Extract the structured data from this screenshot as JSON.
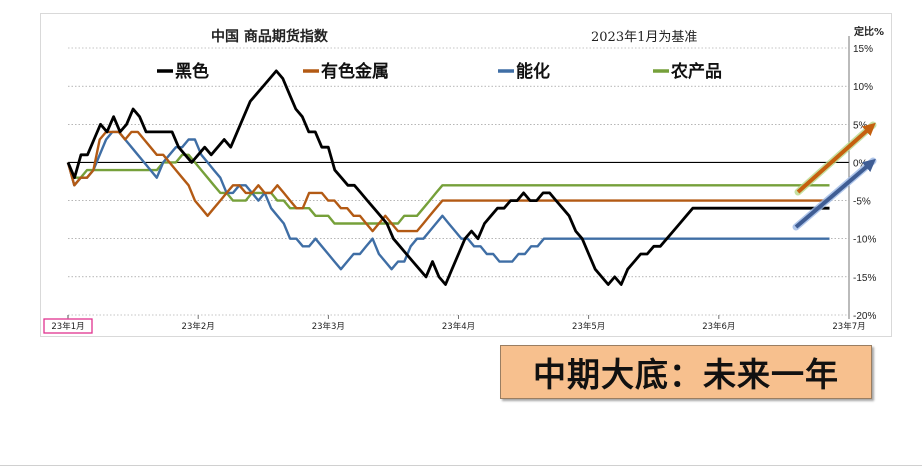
{
  "chart_data": {
    "type": "line",
    "title": "中国 商品期货指数",
    "subtitle": "2023年1月为基准",
    "y_unit_label": "定比%",
    "ylim": [
      -20,
      15
    ],
    "y_ticks": [
      15,
      10,
      5,
      0,
      -5,
      -10,
      -15,
      -20
    ],
    "y_tick_labels": [
      "15%",
      "10%",
      "5%",
      "0%",
      "-5%",
      "-10%",
      "-15%",
      "-20%"
    ],
    "x_ticks": [
      "23年1月",
      "23年2月",
      "23年3月",
      "23年4月",
      "23年5月",
      "23年6月",
      "23年7月"
    ],
    "highlighted_x_tick": "23年1月",
    "legend_position": "top",
    "grid": true,
    "series": [
      {
        "name": "黑色",
        "color": "#000000",
        "x": [
          0,
          0.05,
          0.1,
          0.15,
          0.2,
          0.25,
          0.3,
          0.35,
          0.4,
          0.45,
          0.5,
          0.55,
          0.6,
          0.65,
          0.7,
          0.75,
          0.8,
          0.85,
          0.9,
          0.95,
          1.0,
          1.05,
          1.1,
          1.15,
          1.2,
          1.25,
          1.3,
          1.35,
          1.4,
          1.45,
          1.5,
          1.55,
          1.6,
          1.65,
          1.7,
          1.75,
          1.8,
          1.85,
          1.9,
          1.95,
          2.0,
          2.05,
          2.1,
          2.15,
          2.2,
          2.25,
          2.3,
          2.35,
          2.4,
          2.45,
          2.5,
          2.55,
          2.6,
          2.65,
          2.7,
          2.75,
          2.8,
          2.85,
          2.9,
          2.95,
          3.0,
          3.05,
          3.1,
          3.15,
          3.2,
          3.25,
          3.3,
          3.35,
          3.4,
          3.45,
          3.5,
          3.55,
          3.6,
          3.65,
          3.7,
          3.75,
          3.8,
          3.85,
          3.9,
          3.95,
          4.0,
          4.05,
          4.1,
          4.15,
          4.2,
          4.25,
          4.3,
          4.35,
          4.4,
          4.45,
          4.5,
          4.55,
          4.6,
          4.65,
          4.7,
          4.75,
          4.8,
          4.85,
          4.9,
          4.95,
          5.0,
          5.05,
          5.1,
          5.15,
          5.2,
          5.25,
          5.3,
          5.35,
          5.4,
          5.45,
          5.5,
          5.55,
          5.6,
          5.65,
          5.7,
          5.75,
          5.8,
          5.85,
          5.9,
          5.95,
          6.0
        ],
        "values": [
          0,
          -2,
          1,
          1,
          3,
          5,
          4,
          6,
          4,
          5,
          7,
          6,
          4,
          4,
          4,
          4,
          4,
          2,
          1,
          0,
          1,
          2,
          1,
          2,
          3,
          2,
          4,
          6,
          8,
          9,
          10,
          11,
          12,
          11,
          9,
          7,
          6,
          4,
          4,
          2,
          2,
          -1,
          -2,
          -3,
          -3,
          -4,
          -5,
          -6,
          -7,
          -8,
          -10,
          -11,
          -12,
          -13,
          -14,
          -15,
          -13,
          -15,
          -16,
          -14,
          -12,
          -10,
          -9,
          -10,
          -8,
          -7,
          -6,
          -6,
          -5,
          -5,
          -4,
          -5,
          -5,
          -4,
          -4,
          -5,
          -6,
          -7,
          -9,
          -10,
          -12,
          -14,
          -15,
          -16,
          -15,
          -16,
          -14,
          -13,
          -12,
          -12,
          -11,
          -11,
          -10,
          -9,
          -8,
          -7,
          -6,
          -6,
          -6,
          -6,
          -6,
          -6,
          -6,
          -6,
          -6,
          -6,
          -6,
          -6,
          -6,
          -6,
          -6,
          -6,
          -6,
          -6,
          -6,
          -6,
          -6,
          -6,
          -6,
          -6,
          -6
        ]
      },
      {
        "name": "有色金属",
        "color": "#b35a14",
        "values": [
          0,
          -3,
          -2,
          -2,
          -1,
          3,
          4,
          4,
          4,
          3,
          4,
          4,
          3,
          2,
          1,
          1,
          0,
          -1,
          -2,
          -3,
          -5,
          -6,
          -7,
          -6,
          -5,
          -4,
          -3,
          -3,
          -4,
          -4,
          -3,
          -4,
          -4,
          -3,
          -4,
          -5,
          -6,
          -6,
          -4,
          -4,
          -4,
          -5,
          -5,
          -6,
          -6,
          -7,
          -7,
          -8,
          -9,
          -8,
          -7,
          -8,
          -9,
          -9,
          -9,
          -9,
          -8,
          -7,
          -6,
          -5,
          -5,
          -5,
          -5,
          -5,
          -5,
          -5,
          -5,
          -5,
          -5,
          -5,
          -5,
          -5,
          -5,
          -5,
          -5,
          -5,
          -5,
          -5,
          -5,
          -5,
          -5,
          -5,
          -5,
          -5,
          -5,
          -5,
          -5,
          -5,
          -5,
          -5,
          -5,
          -5,
          -5,
          -5,
          -5,
          -5,
          -5,
          -5,
          -5,
          -5,
          -5,
          -5,
          -5,
          -5,
          -5,
          -5,
          -5,
          -5,
          -5,
          -5,
          -5,
          -5,
          -5,
          -5,
          -5,
          -5,
          -5,
          -5,
          -5,
          -5,
          -5
        ]
      },
      {
        "name": "能化",
        "color": "#3f6ea5",
        "values": [
          0,
          -3,
          -2,
          -2,
          -1,
          1,
          3,
          4,
          4,
          3,
          2,
          1,
          0,
          -1,
          -2,
          0,
          1,
          2,
          2,
          3,
          3,
          1,
          0,
          -1,
          -2,
          -4,
          -4,
          -3,
          -3,
          -4,
          -5,
          -4,
          -6,
          -7,
          -8,
          -10,
          -10,
          -11,
          -11,
          -10,
          -11,
          -12,
          -13,
          -14,
          -13,
          -12,
          -12,
          -11,
          -10,
          -12,
          -13,
          -14,
          -13,
          -13,
          -11,
          -10,
          -10,
          -9,
          -8,
          -7,
          -8,
          -9,
          -10,
          -10,
          -11,
          -11,
          -12,
          -12,
          -13,
          -13,
          -13,
          -12,
          -12,
          -11,
          -11,
          -10,
          -10,
          -10,
          -10,
          -10,
          -10,
          -10,
          -10,
          -10,
          -10,
          -10,
          -10,
          -10,
          -10,
          -10,
          -10,
          -10,
          -10,
          -10,
          -10,
          -10,
          -10,
          -10,
          -10,
          -10,
          -10,
          -10,
          -10,
          -10,
          -10,
          -10,
          -10,
          -10,
          -10,
          -10,
          -10,
          -10,
          -10,
          -10,
          -10,
          -10,
          -10,
          -10,
          -10,
          -10,
          -10
        ]
      },
      {
        "name": "农产品",
        "color": "#76a03a",
        "values": [
          0,
          -2,
          -2,
          -1,
          -1,
          -1,
          -1,
          -1,
          -1,
          -1,
          -1,
          -1,
          -1,
          -1,
          -1,
          0,
          0,
          0,
          1,
          1,
          0,
          -1,
          -2,
          -3,
          -4,
          -4,
          -5,
          -5,
          -5,
          -4,
          -4,
          -4,
          -4,
          -5,
          -5,
          -6,
          -6,
          -6,
          -6,
          -7,
          -7,
          -7,
          -8,
          -8,
          -8,
          -8,
          -8,
          -8,
          -8,
          -8,
          -8,
          -8,
          -8,
          -7,
          -7,
          -7,
          -6,
          -5,
          -4,
          -3,
          -3,
          -3,
          -3,
          -3,
          -3,
          -3,
          -3,
          -3,
          -3,
          -3,
          -3,
          -3,
          -3,
          -3,
          -3,
          -3,
          -3,
          -3,
          -3,
          -3,
          -3,
          -3,
          -3,
          -3,
          -3,
          -3,
          -3,
          -3,
          -3,
          -3,
          -3,
          -3,
          -3,
          -3,
          -3,
          -3,
          -3,
          -3,
          -3,
          -3,
          -3,
          -3,
          -3,
          -3,
          -3,
          -3,
          -3,
          -3,
          -3,
          -3,
          -3,
          -3,
          -3,
          -3,
          -3,
          -3,
          -3,
          -3,
          -3,
          -3,
          -3
        ]
      }
    ]
  },
  "legend": [
    {
      "label": "黑色",
      "color": "#000000"
    },
    {
      "label": "有色金属",
      "color": "#b35a14"
    },
    {
      "label": "能化",
      "color": "#3f6ea5"
    },
    {
      "label": "农产品",
      "color": "#76a03a"
    }
  ],
  "banner": {
    "text": "中期大底：未来一年"
  }
}
